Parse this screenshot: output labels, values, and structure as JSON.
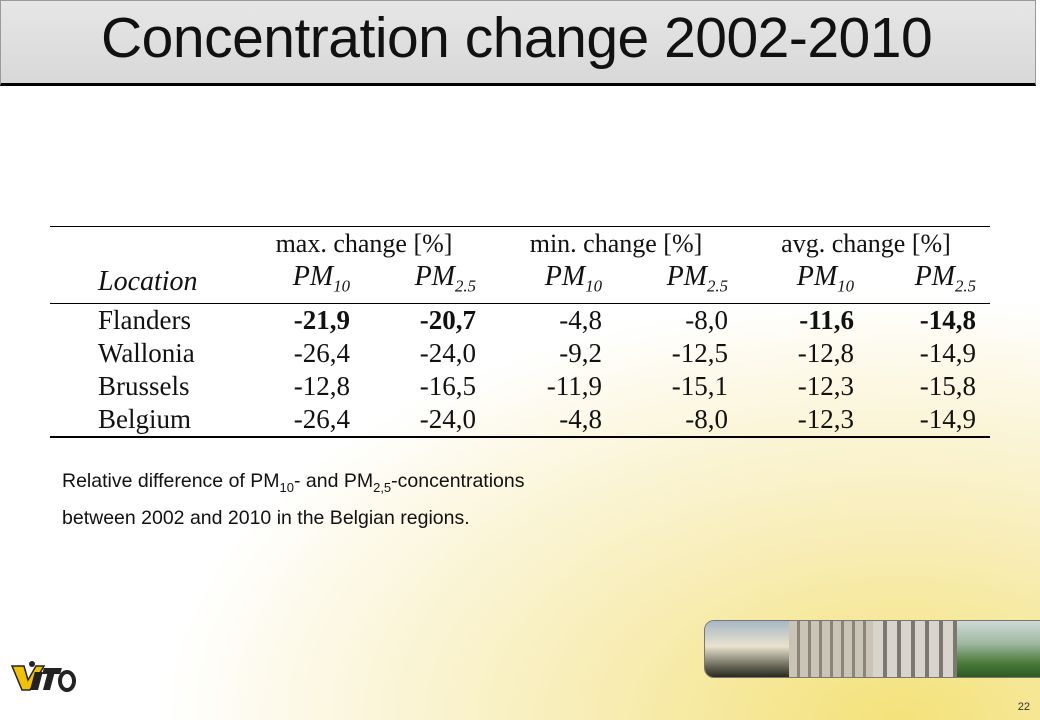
{
  "slide": {
    "title": "Concentration change 2002-2010",
    "page_number": "22"
  },
  "table": {
    "group_headers": [
      "max. change [%]",
      "min. change [%]",
      "avg. change [%]"
    ],
    "location_header": "Location",
    "pm10": {
      "base": "PM",
      "sub": "10"
    },
    "pm25": {
      "base": "PM",
      "sub": "2.5"
    },
    "rows": [
      {
        "location": "Flanders",
        "values": [
          "-21,9",
          "-20,7",
          "-4,8",
          "-8,0",
          "-11,6",
          "-14,8"
        ]
      },
      {
        "location": "Wallonia",
        "values": [
          "-26,4",
          "-24,0",
          "-9,2",
          "-12,5",
          "-12,8",
          "-14,9"
        ]
      },
      {
        "location": "Brussels",
        "values": [
          "-12,8",
          "-16,5",
          "-11,9",
          "-15,1",
          "-12,3",
          "-15,8"
        ]
      },
      {
        "location": "Belgium",
        "values": [
          "-26,4",
          "-24,0",
          "-4,8",
          "-8,0",
          "-12,3",
          "-14,9"
        ]
      }
    ]
  },
  "caption": {
    "part1": "Relative difference of PM",
    "sub1": "10",
    "part2": "- and PM",
    "sub2": "2,5",
    "part3": "-concentrations",
    "line2": "between 2002 and 2010 in the Belgian regions."
  },
  "logo": {
    "name": "vito-logo"
  }
}
